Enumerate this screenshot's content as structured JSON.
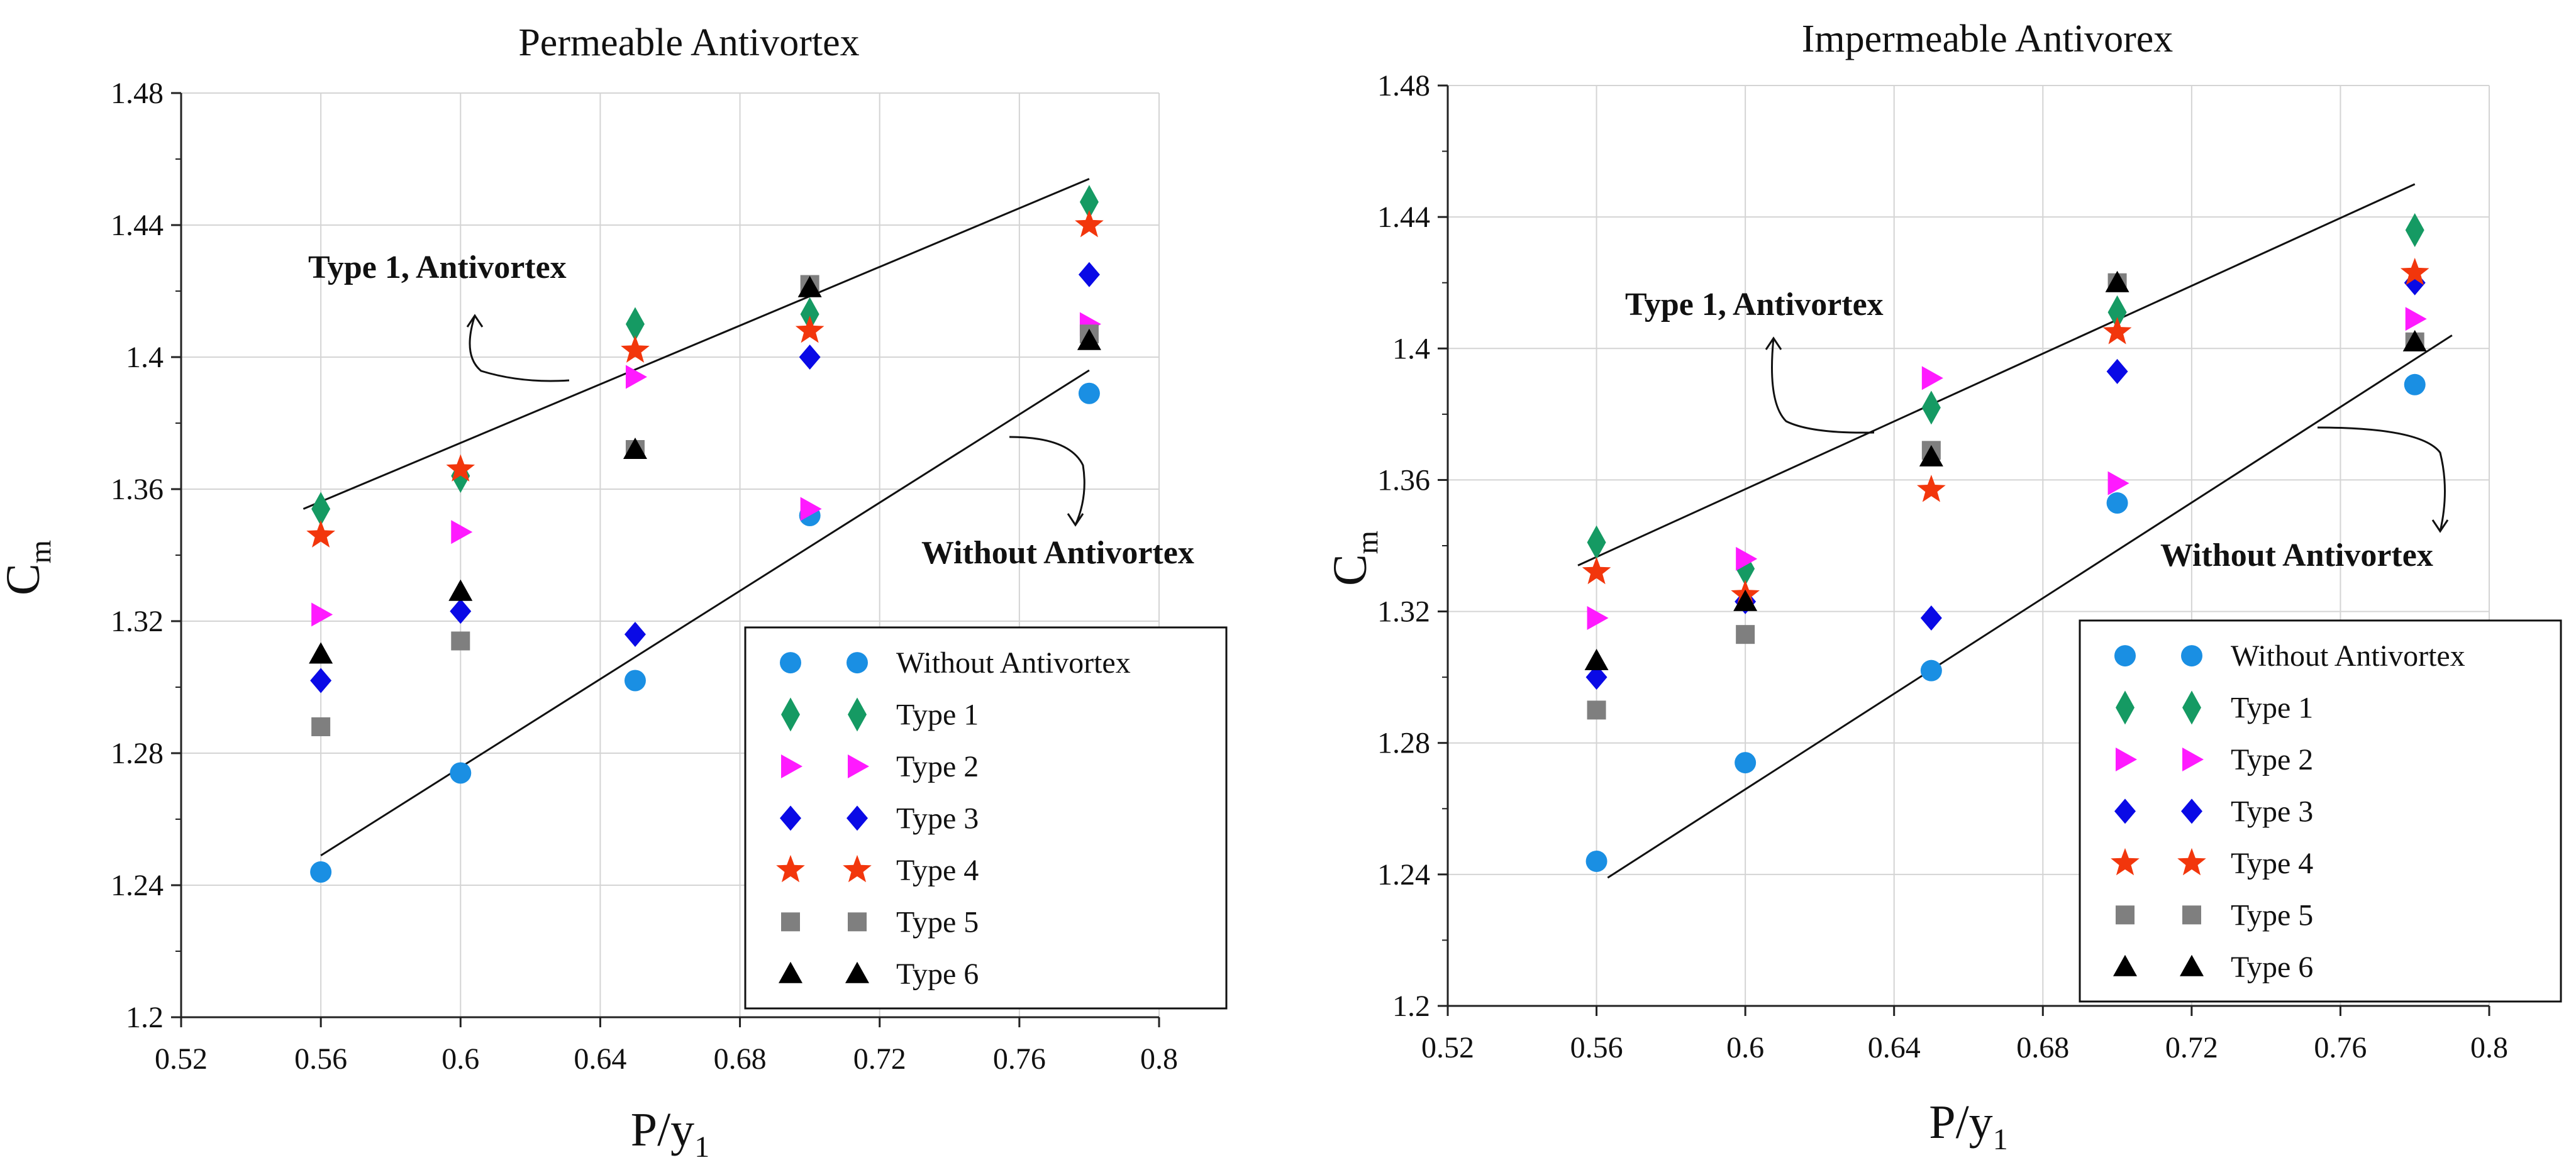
{
  "chart_data": [
    {
      "type": "scatter",
      "title": "Permeable Antivortex",
      "xlabel": "P/y",
      "xlabel_sub": "1",
      "ylabel": "C",
      "ylabel_sub": "m",
      "xlim": [
        0.52,
        0.8
      ],
      "ylim": [
        1.2,
        1.48
      ],
      "xticks": [
        "0.52",
        "0.56",
        "0.6",
        "0.64",
        "0.68",
        "0.72",
        "0.76",
        "0.8"
      ],
      "yticks": [
        "1.2",
        "1.24",
        "1.28",
        "1.32",
        "1.36",
        "1.4",
        "1.44",
        "1.48"
      ],
      "grid": true,
      "legend_position": "bottom-right",
      "series": [
        {
          "name": "Without Antivortex",
          "marker": "circle",
          "color": "#1a8fe3",
          "x": [
            0.56,
            0.6,
            0.65,
            0.7,
            0.78
          ],
          "y": [
            1.244,
            1.274,
            1.302,
            1.352,
            1.389
          ]
        },
        {
          "name": "Type 1",
          "marker": "diamond-tall",
          "color": "#159a63",
          "x": [
            0.56,
            0.6,
            0.65,
            0.7,
            0.78
          ],
          "y": [
            1.354,
            1.364,
            1.41,
            1.413,
            1.447
          ]
        },
        {
          "name": "Type 2",
          "marker": "triangle-right",
          "color": "#ff1aff",
          "x": [
            0.56,
            0.6,
            0.65,
            0.7,
            0.78
          ],
          "y": [
            1.322,
            1.347,
            1.394,
            1.354,
            1.41
          ]
        },
        {
          "name": "Type 3",
          "marker": "diamond",
          "color": "#0a0ae6",
          "x": [
            0.56,
            0.6,
            0.65,
            0.7,
            0.78
          ],
          "y": [
            1.302,
            1.323,
            1.316,
            1.4,
            1.425
          ]
        },
        {
          "name": "Type 4",
          "marker": "star",
          "color": "#f2360c",
          "x": [
            0.56,
            0.6,
            0.65,
            0.7,
            0.78
          ],
          "y": [
            1.346,
            1.366,
            1.402,
            1.408,
            1.44
          ]
        },
        {
          "name": "Type 5",
          "marker": "square",
          "color": "#7f7f7f",
          "x": [
            0.56,
            0.6,
            0.65,
            0.7,
            0.78
          ],
          "y": [
            1.288,
            1.314,
            1.372,
            1.422,
            1.407
          ]
        },
        {
          "name": "Type 6",
          "marker": "triangle-up",
          "color": "#000000",
          "x": [
            0.56,
            0.6,
            0.65,
            0.7,
            0.78
          ],
          "y": [
            1.31,
            1.329,
            1.372,
            1.421,
            1.405
          ]
        }
      ],
      "trend_lines": [
        {
          "name": "Type 1, Antivortex",
          "x": [
            0.555,
            0.78
          ],
          "y": [
            1.354,
            1.454
          ]
        },
        {
          "name": "Without Antivortex",
          "x": [
            0.56,
            0.78
          ],
          "y": [
            1.249,
            1.396
          ]
        }
      ],
      "annotations": [
        {
          "text": "Type 1, Antivortex",
          "points_to": "upper trend line"
        },
        {
          "text": "Without Antivortex",
          "points_to": "lower trend line"
        }
      ]
    },
    {
      "type": "scatter",
      "title": "Impermeable Antivorex",
      "xlabel": "P/y",
      "xlabel_sub": "1",
      "ylabel": "C",
      "ylabel_sub": "m",
      "xlim": [
        0.52,
        0.8
      ],
      "ylim": [
        1.2,
        1.48
      ],
      "xticks": [
        "0.52",
        "0.56",
        "0.6",
        "0.64",
        "0.68",
        "0.72",
        "0.76",
        "0.8"
      ],
      "yticks": [
        "1.2",
        "1.24",
        "1.28",
        "1.32",
        "1.36",
        "1.4",
        "1.44",
        "1.48"
      ],
      "grid": true,
      "legend_position": "bottom-right",
      "series": [
        {
          "name": "Without Antivortex",
          "marker": "circle",
          "color": "#1a8fe3",
          "x": [
            0.56,
            0.6,
            0.65,
            0.7,
            0.78
          ],
          "y": [
            1.244,
            1.274,
            1.302,
            1.353,
            1.389
          ]
        },
        {
          "name": "Type 1",
          "marker": "diamond-tall",
          "color": "#159a63",
          "x": [
            0.56,
            0.6,
            0.65,
            0.7,
            0.78
          ],
          "y": [
            1.341,
            1.333,
            1.382,
            1.411,
            1.436
          ]
        },
        {
          "name": "Type 2",
          "marker": "triangle-right",
          "color": "#ff1aff",
          "x": [
            0.56,
            0.6,
            0.65,
            0.7,
            0.78
          ],
          "y": [
            1.318,
            1.336,
            1.391,
            1.359,
            1.409
          ]
        },
        {
          "name": "Type 3",
          "marker": "diamond",
          "color": "#0a0ae6",
          "x": [
            0.56,
            0.6,
            0.65,
            0.7,
            0.78
          ],
          "y": [
            1.3,
            1.323,
            1.318,
            1.393,
            1.42
          ]
        },
        {
          "name": "Type 4",
          "marker": "star",
          "color": "#f2360c",
          "x": [
            0.56,
            0.6,
            0.65,
            0.7,
            0.78
          ],
          "y": [
            1.332,
            1.325,
            1.357,
            1.405,
            1.423
          ]
        },
        {
          "name": "Type 5",
          "marker": "square",
          "color": "#7f7f7f",
          "x": [
            0.56,
            0.6,
            0.65,
            0.7,
            0.78
          ],
          "y": [
            1.29,
            1.313,
            1.369,
            1.42,
            1.402
          ]
        },
        {
          "name": "Type 6",
          "marker": "triangle-up",
          "color": "#000000",
          "x": [
            0.56,
            0.6,
            0.65,
            0.7,
            0.78
          ],
          "y": [
            1.305,
            1.323,
            1.367,
            1.42,
            1.402
          ]
        }
      ],
      "trend_lines": [
        {
          "name": "Type 1, Antivortex",
          "x": [
            0.555,
            0.78
          ],
          "y": [
            1.334,
            1.45
          ]
        },
        {
          "name": "Without Antivortex",
          "x": [
            0.563,
            0.79
          ],
          "y": [
            1.239,
            1.404
          ]
        }
      ],
      "annotations": [
        {
          "text": "Type 1, Antivortex",
          "points_to": "upper trend line"
        },
        {
          "text": "Without Antivortex",
          "points_to": "lower trend line"
        }
      ]
    }
  ]
}
